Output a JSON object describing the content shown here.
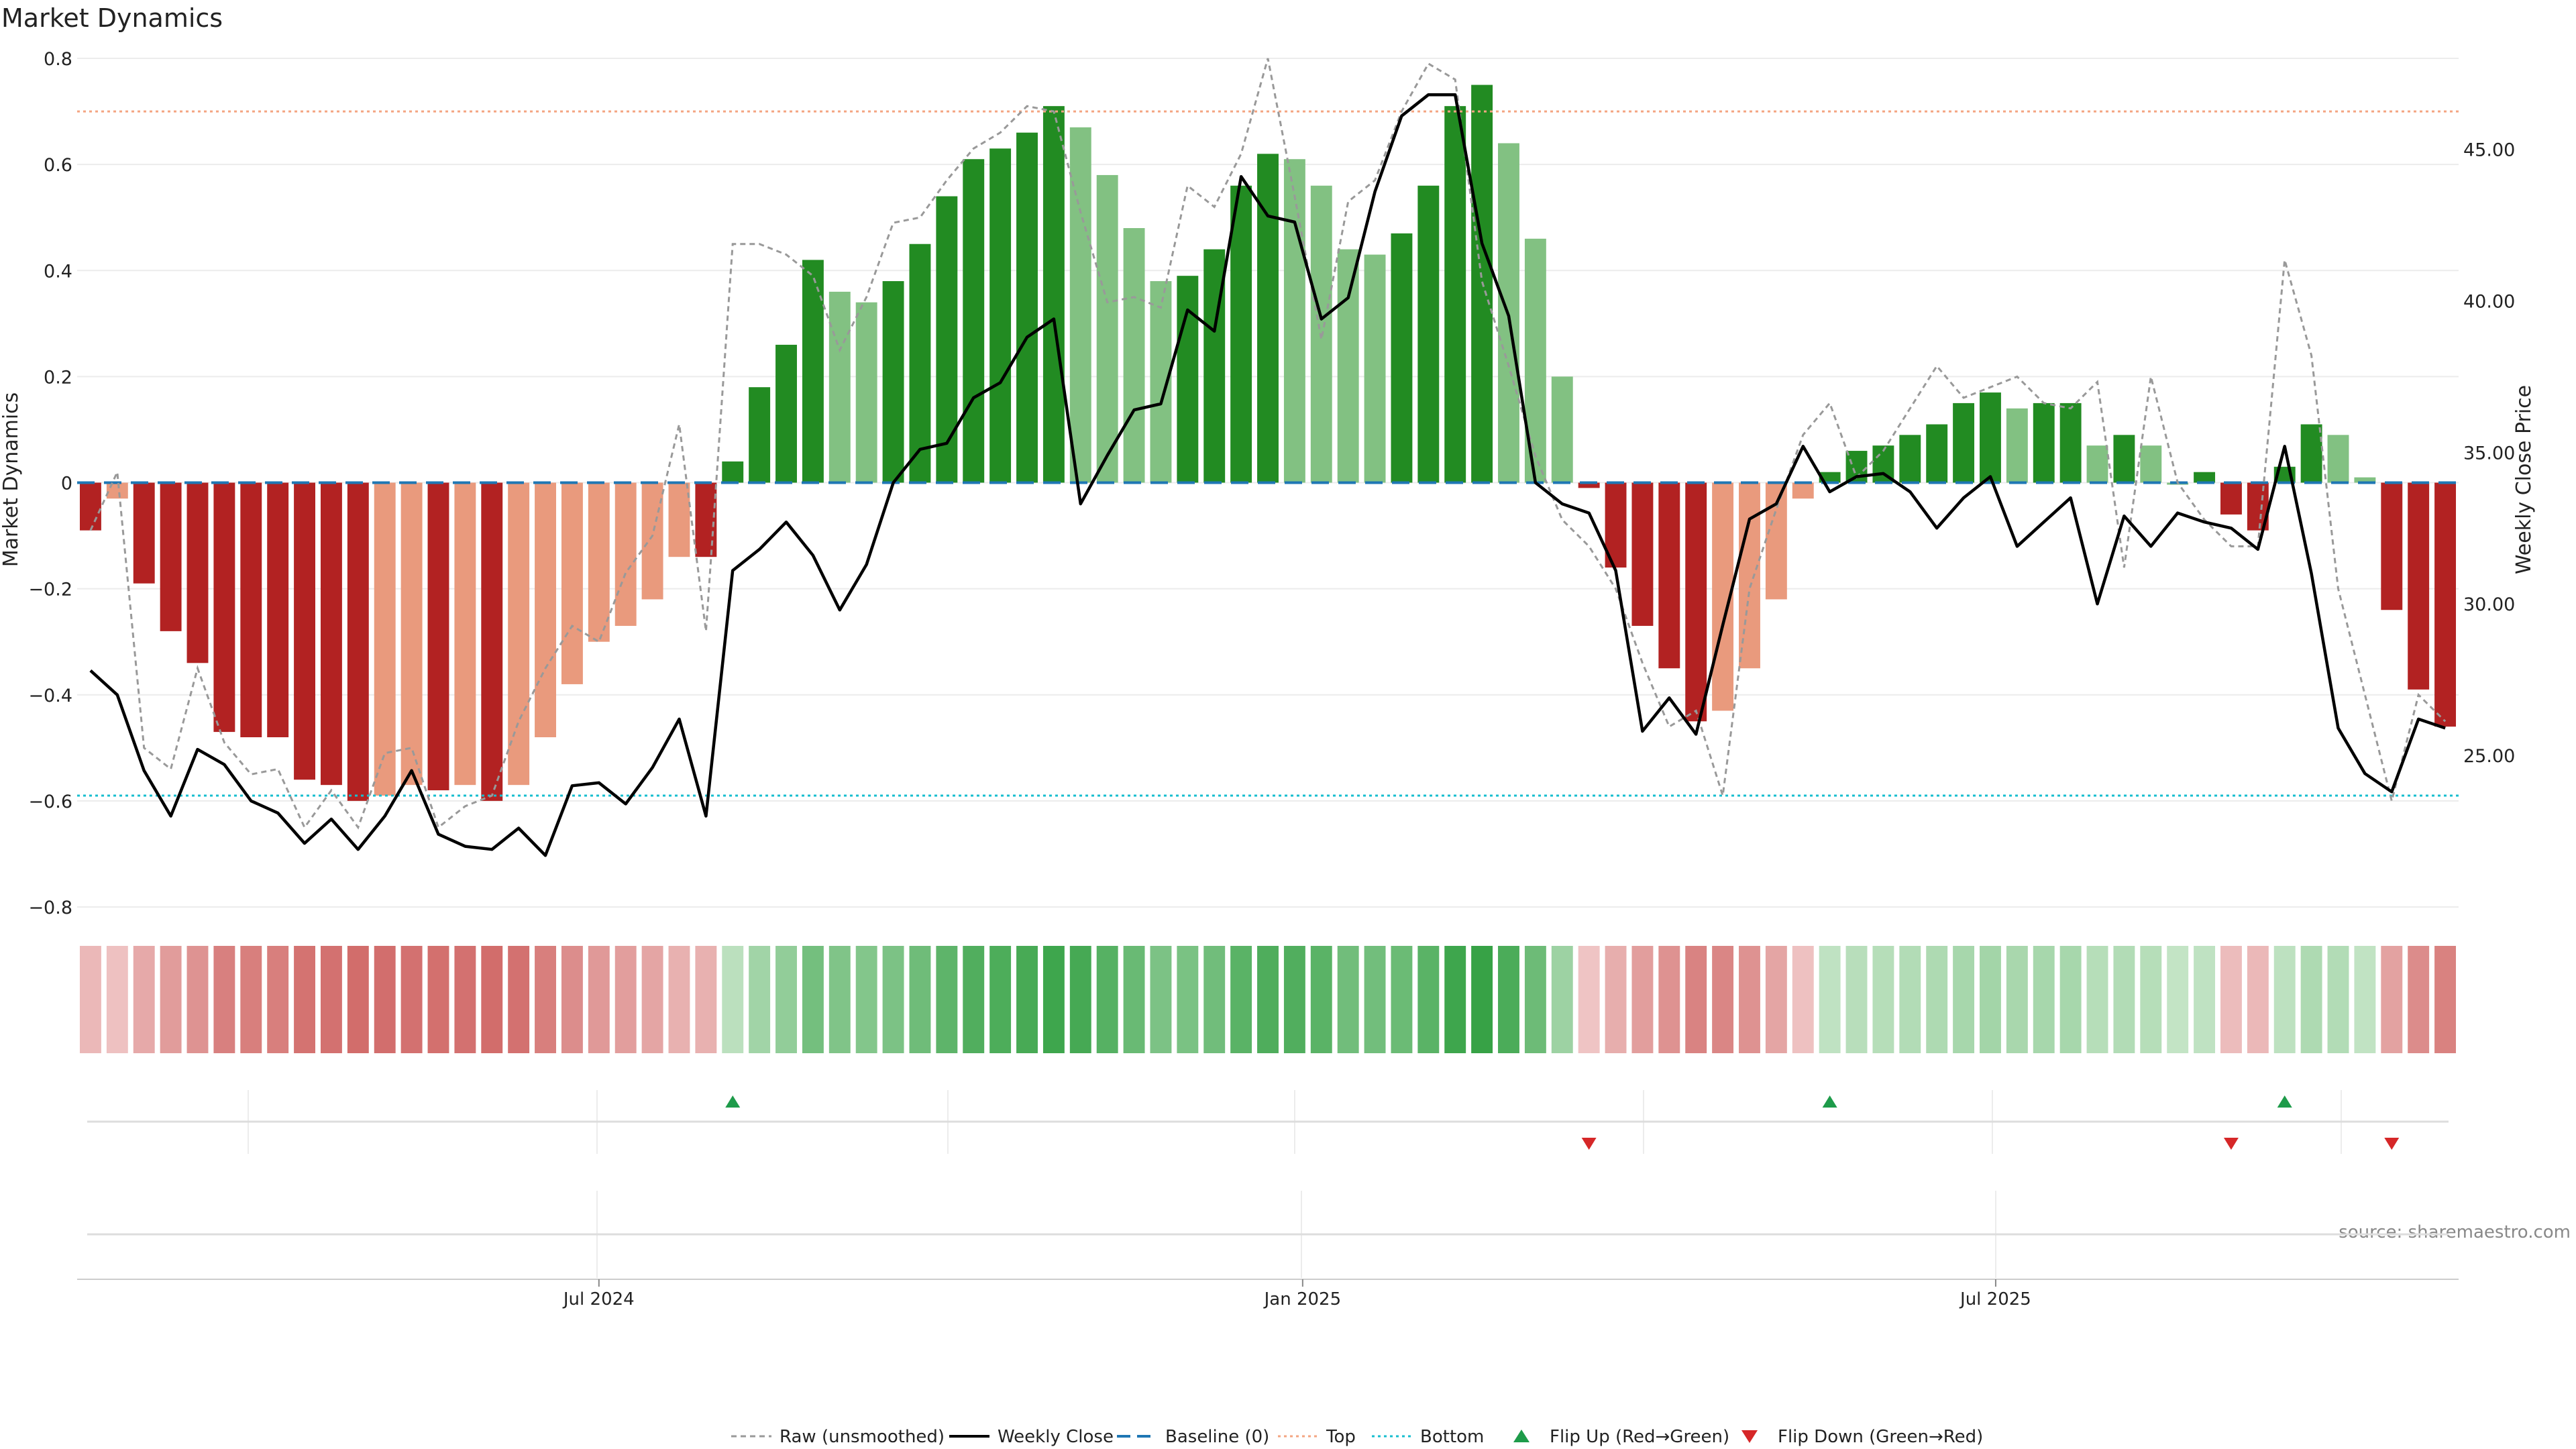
{
  "chart_data": {
    "type": "bar",
    "title": "Market Dynamics",
    "ylabel_left": "Market Dynamics",
    "ylabel_right": "Weekly Close Price",
    "source": "source: sharemaestro.com",
    "ylim_left": [
      -0.8,
      0.8
    ],
    "ylim_right": [
      20.0,
      48.0
    ],
    "yticks_left": [
      "0.8",
      "0.6",
      "0.4",
      "0.2",
      "0",
      "−0.2",
      "−0.4",
      "−0.6",
      "−0.8"
    ],
    "yticks_left_values": [
      0.8,
      0.6,
      0.4,
      0.2,
      0,
      -0.2,
      -0.4,
      -0.6,
      -0.8
    ],
    "yticks_right": [
      "45.00",
      "40.00",
      "35.00",
      "30.00",
      "25.00"
    ],
    "yticks_right_values": [
      45,
      40,
      35,
      30,
      25
    ],
    "x_ticks": [
      {
        "label": "Jul 2024",
        "index": 19.5
      },
      {
        "label": "Jan 2025",
        "index": 45.8
      },
      {
        "label": "Jul 2025",
        "index": 71.7
      }
    ],
    "grid": true,
    "top_line": 0.7,
    "bottom_line": -0.59,
    "baseline": 0,
    "series": [
      {
        "name": "Market Dynamics",
        "values": [
          -0.09,
          -0.03,
          -0.19,
          -0.28,
          -0.34,
          -0.47,
          -0.48,
          -0.48,
          -0.56,
          -0.57,
          -0.6,
          -0.59,
          -0.57,
          -0.58,
          -0.57,
          -0.6,
          -0.57,
          -0.48,
          -0.38,
          -0.3,
          -0.27,
          -0.22,
          -0.14,
          -0.14,
          0.04,
          0.18,
          0.26,
          0.42,
          0.36,
          0.34,
          0.38,
          0.45,
          0.54,
          0.61,
          0.63,
          0.66,
          0.71,
          0.67,
          0.58,
          0.48,
          0.38,
          0.39,
          0.44,
          0.56,
          0.62,
          0.61,
          0.56,
          0.44,
          0.43,
          0.47,
          0.56,
          0.71,
          0.75,
          0.64,
          0.46,
          0.2,
          -0.01,
          -0.16,
          -0.27,
          -0.35,
          -0.45,
          -0.43,
          -0.35,
          -0.22,
          -0.03,
          0.02,
          0.06,
          0.07,
          0.09,
          0.11,
          0.15,
          0.17,
          0.14,
          0.15,
          0.15,
          0.07,
          0.09,
          0.07,
          0.0,
          0.02,
          -0.06,
          -0.09,
          0.03,
          0.11,
          0.09,
          0.01,
          -0.24,
          -0.39,
          -0.46
        ]
      },
      {
        "name": "Weekly Close",
        "values": [
          27.8,
          27.0,
          24.5,
          23.0,
          25.2,
          24.7,
          23.5,
          23.1,
          22.1,
          22.9,
          21.9,
          23.0,
          24.5,
          22.4,
          22.0,
          21.9,
          22.6,
          21.7,
          24.0,
          24.1,
          23.4,
          24.6,
          26.2,
          23.0,
          31.1,
          31.8,
          32.7,
          31.6,
          29.8,
          31.3,
          34.0,
          35.1,
          35.3,
          36.8,
          37.3,
          38.8,
          39.4,
          33.3,
          34.9,
          36.4,
          36.6,
          39.7,
          39.0,
          44.1,
          42.8,
          42.6,
          39.4,
          40.1,
          43.6,
          46.1,
          46.8,
          46.8,
          41.9,
          39.5,
          34.0,
          33.3,
          33.0,
          31.1,
          25.8,
          26.9,
          25.7,
          29.3,
          32.8,
          33.3,
          35.2,
          33.7,
          34.2,
          34.3,
          33.7,
          32.5,
          33.5,
          34.2,
          31.9,
          32.7,
          33.5,
          30.0,
          32.9,
          31.9,
          33.0,
          32.7,
          32.5,
          31.8,
          35.2,
          31.0,
          25.9,
          24.4,
          23.8,
          26.2,
          25.9
        ]
      },
      {
        "name": "Raw (unsmoothed)",
        "values": [
          -0.09,
          0.02,
          -0.5,
          -0.54,
          -0.35,
          -0.49,
          -0.55,
          -0.54,
          -0.65,
          -0.58,
          -0.65,
          -0.51,
          -0.5,
          -0.65,
          -0.61,
          -0.59,
          -0.45,
          -0.35,
          -0.27,
          -0.3,
          -0.17,
          -0.1,
          0.11,
          -0.28,
          0.45,
          0.45,
          0.43,
          0.39,
          0.25,
          0.35,
          0.49,
          0.5,
          0.57,
          0.63,
          0.66,
          0.71,
          0.7,
          0.51,
          0.34,
          0.35,
          0.33,
          0.56,
          0.52,
          0.62,
          0.8,
          0.54,
          0.27,
          0.53,
          0.57,
          0.7,
          0.79,
          0.76,
          0.38,
          0.22,
          0.05,
          -0.07,
          -0.12,
          -0.2,
          -0.34,
          -0.46,
          -0.43,
          -0.59,
          -0.2,
          -0.05,
          0.09,
          0.15,
          0.01,
          0.06,
          0.14,
          0.22,
          0.16,
          0.18,
          0.2,
          0.15,
          0.14,
          0.19,
          -0.16,
          0.2,
          0.0,
          -0.07,
          -0.12,
          -0.12,
          0.42,
          0.24,
          -0.2,
          -0.4,
          -0.6,
          -0.4,
          -0.45
        ]
      },
      {
        "name": "Baseline (0)"
      },
      {
        "name": "Top"
      },
      {
        "name": "Bottom"
      },
      {
        "name": "Flip Up (Red→Green)",
        "indices": [
          24,
          65,
          82
        ]
      },
      {
        "name": "Flip Down (Green→Red)",
        "indices": [
          56,
          80,
          86
        ]
      }
    ],
    "legend_position": "bottom-center",
    "colors": {
      "green_strong": "#228b22",
      "green_light": "#82c182",
      "red_strong": "#b22222",
      "red_light": "#e99a7d",
      "raw_line": "#999999",
      "close_line": "#000000",
      "baseline": "#1f77b4",
      "top_line": "#f4a582",
      "bottom_line": "#17becf",
      "flip_up": "#1e9b4a",
      "flip_down": "#d62728"
    }
  }
}
